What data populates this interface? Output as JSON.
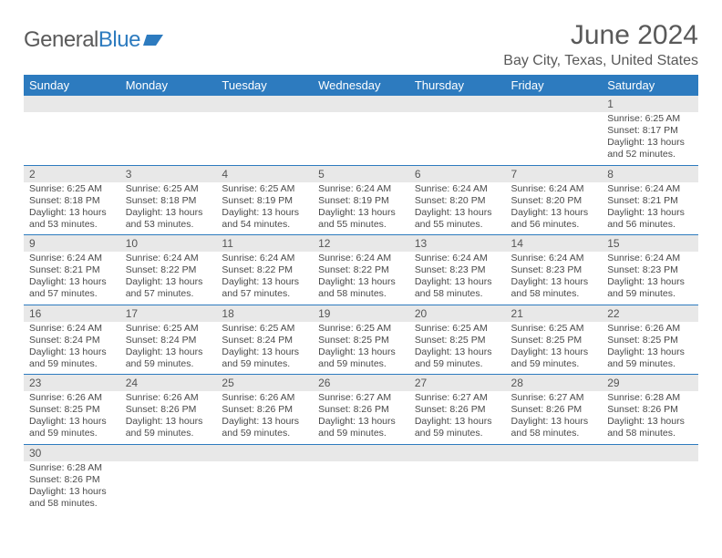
{
  "logo": {
    "word1": "General",
    "word2": "Blue"
  },
  "title": "June 2024",
  "location": "Bay City, Texas, United States",
  "colors": {
    "header_bg": "#2d7bbf",
    "header_text": "#ffffff",
    "daynum_bg": "#e8e8e8",
    "cell_border": "#2d7bbf",
    "body_text": "#4a4a4a",
    "title_text": "#595959"
  },
  "weekdays": [
    "Sunday",
    "Monday",
    "Tuesday",
    "Wednesday",
    "Thursday",
    "Friday",
    "Saturday"
  ],
  "grid": [
    [
      null,
      null,
      null,
      null,
      null,
      null,
      {
        "n": "1",
        "sr": "Sunrise: 6:25 AM",
        "ss": "Sunset: 8:17 PM",
        "d1": "Daylight: 13 hours",
        "d2": "and 52 minutes."
      }
    ],
    [
      {
        "n": "2",
        "sr": "Sunrise: 6:25 AM",
        "ss": "Sunset: 8:18 PM",
        "d1": "Daylight: 13 hours",
        "d2": "and 53 minutes."
      },
      {
        "n": "3",
        "sr": "Sunrise: 6:25 AM",
        "ss": "Sunset: 8:18 PM",
        "d1": "Daylight: 13 hours",
        "d2": "and 53 minutes."
      },
      {
        "n": "4",
        "sr": "Sunrise: 6:25 AM",
        "ss": "Sunset: 8:19 PM",
        "d1": "Daylight: 13 hours",
        "d2": "and 54 minutes."
      },
      {
        "n": "5",
        "sr": "Sunrise: 6:24 AM",
        "ss": "Sunset: 8:19 PM",
        "d1": "Daylight: 13 hours",
        "d2": "and 55 minutes."
      },
      {
        "n": "6",
        "sr": "Sunrise: 6:24 AM",
        "ss": "Sunset: 8:20 PM",
        "d1": "Daylight: 13 hours",
        "d2": "and 55 minutes."
      },
      {
        "n": "7",
        "sr": "Sunrise: 6:24 AM",
        "ss": "Sunset: 8:20 PM",
        "d1": "Daylight: 13 hours",
        "d2": "and 56 minutes."
      },
      {
        "n": "8",
        "sr": "Sunrise: 6:24 AM",
        "ss": "Sunset: 8:21 PM",
        "d1": "Daylight: 13 hours",
        "d2": "and 56 minutes."
      }
    ],
    [
      {
        "n": "9",
        "sr": "Sunrise: 6:24 AM",
        "ss": "Sunset: 8:21 PM",
        "d1": "Daylight: 13 hours",
        "d2": "and 57 minutes."
      },
      {
        "n": "10",
        "sr": "Sunrise: 6:24 AM",
        "ss": "Sunset: 8:22 PM",
        "d1": "Daylight: 13 hours",
        "d2": "and 57 minutes."
      },
      {
        "n": "11",
        "sr": "Sunrise: 6:24 AM",
        "ss": "Sunset: 8:22 PM",
        "d1": "Daylight: 13 hours",
        "d2": "and 57 minutes."
      },
      {
        "n": "12",
        "sr": "Sunrise: 6:24 AM",
        "ss": "Sunset: 8:22 PM",
        "d1": "Daylight: 13 hours",
        "d2": "and 58 minutes."
      },
      {
        "n": "13",
        "sr": "Sunrise: 6:24 AM",
        "ss": "Sunset: 8:23 PM",
        "d1": "Daylight: 13 hours",
        "d2": "and 58 minutes."
      },
      {
        "n": "14",
        "sr": "Sunrise: 6:24 AM",
        "ss": "Sunset: 8:23 PM",
        "d1": "Daylight: 13 hours",
        "d2": "and 58 minutes."
      },
      {
        "n": "15",
        "sr": "Sunrise: 6:24 AM",
        "ss": "Sunset: 8:23 PM",
        "d1": "Daylight: 13 hours",
        "d2": "and 59 minutes."
      }
    ],
    [
      {
        "n": "16",
        "sr": "Sunrise: 6:24 AM",
        "ss": "Sunset: 8:24 PM",
        "d1": "Daylight: 13 hours",
        "d2": "and 59 minutes."
      },
      {
        "n": "17",
        "sr": "Sunrise: 6:25 AM",
        "ss": "Sunset: 8:24 PM",
        "d1": "Daylight: 13 hours",
        "d2": "and 59 minutes."
      },
      {
        "n": "18",
        "sr": "Sunrise: 6:25 AM",
        "ss": "Sunset: 8:24 PM",
        "d1": "Daylight: 13 hours",
        "d2": "and 59 minutes."
      },
      {
        "n": "19",
        "sr": "Sunrise: 6:25 AM",
        "ss": "Sunset: 8:25 PM",
        "d1": "Daylight: 13 hours",
        "d2": "and 59 minutes."
      },
      {
        "n": "20",
        "sr": "Sunrise: 6:25 AM",
        "ss": "Sunset: 8:25 PM",
        "d1": "Daylight: 13 hours",
        "d2": "and 59 minutes."
      },
      {
        "n": "21",
        "sr": "Sunrise: 6:25 AM",
        "ss": "Sunset: 8:25 PM",
        "d1": "Daylight: 13 hours",
        "d2": "and 59 minutes."
      },
      {
        "n": "22",
        "sr": "Sunrise: 6:26 AM",
        "ss": "Sunset: 8:25 PM",
        "d1": "Daylight: 13 hours",
        "d2": "and 59 minutes."
      }
    ],
    [
      {
        "n": "23",
        "sr": "Sunrise: 6:26 AM",
        "ss": "Sunset: 8:25 PM",
        "d1": "Daylight: 13 hours",
        "d2": "and 59 minutes."
      },
      {
        "n": "24",
        "sr": "Sunrise: 6:26 AM",
        "ss": "Sunset: 8:26 PM",
        "d1": "Daylight: 13 hours",
        "d2": "and 59 minutes."
      },
      {
        "n": "25",
        "sr": "Sunrise: 6:26 AM",
        "ss": "Sunset: 8:26 PM",
        "d1": "Daylight: 13 hours",
        "d2": "and 59 minutes."
      },
      {
        "n": "26",
        "sr": "Sunrise: 6:27 AM",
        "ss": "Sunset: 8:26 PM",
        "d1": "Daylight: 13 hours",
        "d2": "and 59 minutes."
      },
      {
        "n": "27",
        "sr": "Sunrise: 6:27 AM",
        "ss": "Sunset: 8:26 PM",
        "d1": "Daylight: 13 hours",
        "d2": "and 59 minutes."
      },
      {
        "n": "28",
        "sr": "Sunrise: 6:27 AM",
        "ss": "Sunset: 8:26 PM",
        "d1": "Daylight: 13 hours",
        "d2": "and 58 minutes."
      },
      {
        "n": "29",
        "sr": "Sunrise: 6:28 AM",
        "ss": "Sunset: 8:26 PM",
        "d1": "Daylight: 13 hours",
        "d2": "and 58 minutes."
      }
    ],
    [
      {
        "n": "30",
        "sr": "Sunrise: 6:28 AM",
        "ss": "Sunset: 8:26 PM",
        "d1": "Daylight: 13 hours",
        "d2": "and 58 minutes."
      },
      null,
      null,
      null,
      null,
      null,
      null
    ]
  ]
}
